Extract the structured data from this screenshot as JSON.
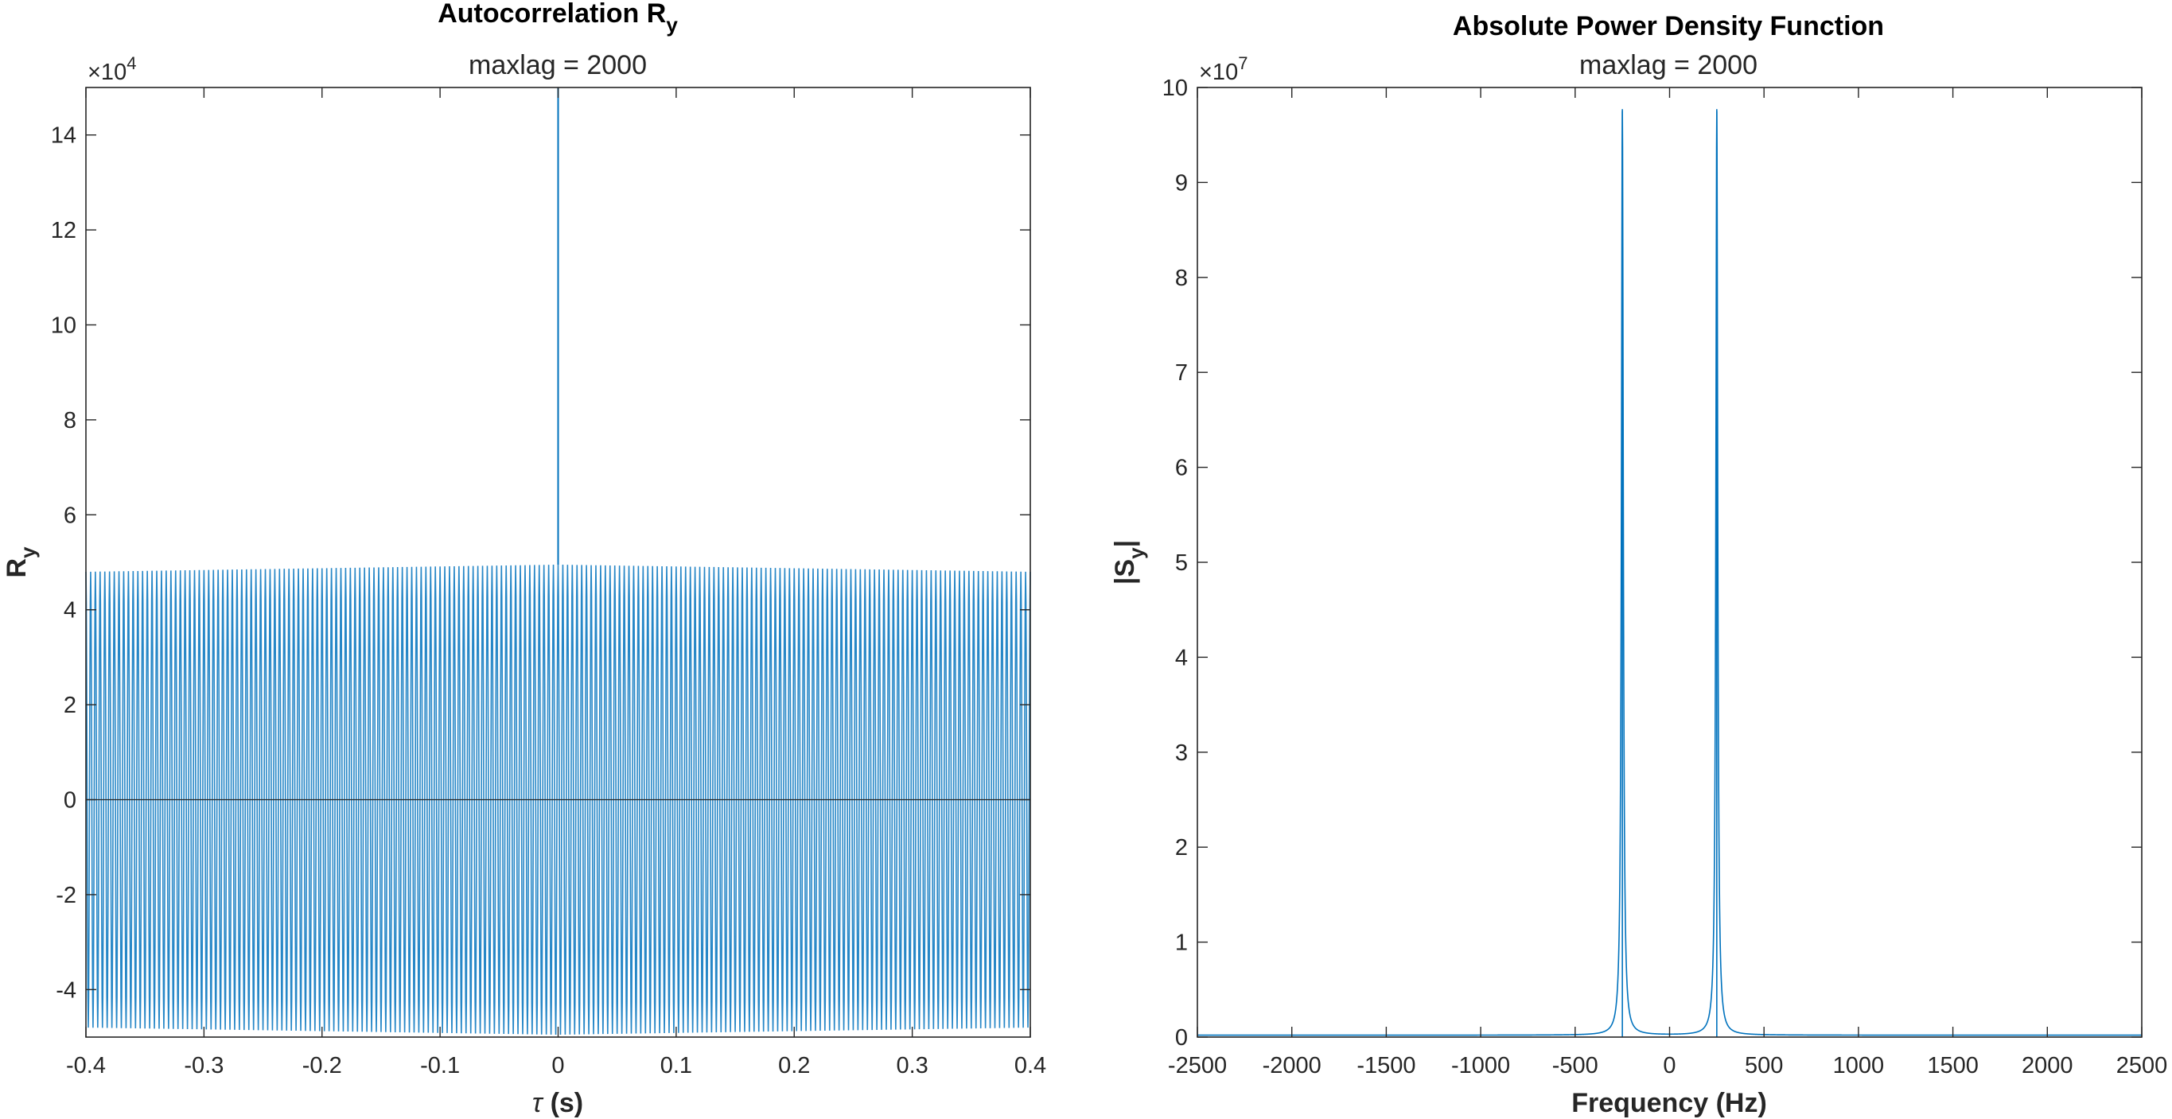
{
  "chart_data": [
    {
      "type": "line",
      "title": "Autocorrelation R",
      "title_subscript": "y",
      "subtitle": "maxlag = 2000",
      "xlabel_symbol": "τ",
      "xlabel": "(s)",
      "ylabel": "R",
      "ylabel_subscript": "y",
      "xlim": [
        -0.4,
        0.4
      ],
      "ylim": [
        -5,
        15
      ],
      "y_multiplier": "×10",
      "y_multiplier_exponent": "4",
      "xticks": [
        -0.4,
        -0.3,
        -0.2,
        -0.1,
        0,
        0.1,
        0.2,
        0.3,
        0.4
      ],
      "xtick_labels": [
        "-0.4",
        "-0.3",
        "-0.2",
        "-0.1",
        "0",
        "0.1",
        "0.2",
        "0.3",
        "0.4"
      ],
      "yticks": [
        -4,
        -2,
        0,
        2,
        4,
        6,
        8,
        10,
        12,
        14
      ],
      "ytick_labels": [
        "-4",
        "-2",
        "0",
        "2",
        "4",
        "6",
        "8",
        "10",
        "12",
        "14"
      ],
      "grid": false,
      "zero_line": true,
      "series_color": "#0072BD",
      "series": [
        {
          "description": "periodic oscillation (approx. 250 Hz) with envelope about ±4.85, larger near tau = 0; central spike",
          "osc_frequency_hz": 250,
          "envelope_edge": 4.8,
          "envelope_center": 4.95,
          "peak": {
            "x": 0,
            "y": 15
          }
        }
      ]
    },
    {
      "type": "line",
      "title": "Absolute Power Density Function",
      "subtitle": "maxlag = 2000",
      "xlabel": "Frequency (Hz)",
      "ylabel": "|S",
      "ylabel_subscript": "y",
      "ylabel_suffix": "|",
      "xlim": [
        -2500,
        2500
      ],
      "ylim": [
        0,
        10
      ],
      "y_multiplier": "×10",
      "y_multiplier_exponent": "7",
      "xticks": [
        -2500,
        -2000,
        -1500,
        -1000,
        -500,
        0,
        500,
        1000,
        1500,
        2000,
        2500
      ],
      "xtick_labels": [
        "-2500",
        "-2000",
        "-1500",
        "-1000",
        "-500",
        "0",
        "500",
        "1000",
        "1500",
        "2000",
        "2500"
      ],
      "yticks": [
        0,
        1,
        2,
        3,
        4,
        5,
        6,
        7,
        8,
        9,
        10
      ],
      "ytick_labels": [
        "0",
        "1",
        "2",
        "3",
        "4",
        "5",
        "6",
        "7",
        "8",
        "9",
        "10"
      ],
      "grid": false,
      "series_color": "#0072BD",
      "series": [
        {
          "description": "two narrow spectral peaks at ±250 Hz, near-zero elsewhere",
          "peaks": [
            {
              "x": -250,
              "y": 9.75
            },
            {
              "x": 250,
              "y": 9.75
            }
          ],
          "floor": 0.02
        }
      ]
    }
  ]
}
